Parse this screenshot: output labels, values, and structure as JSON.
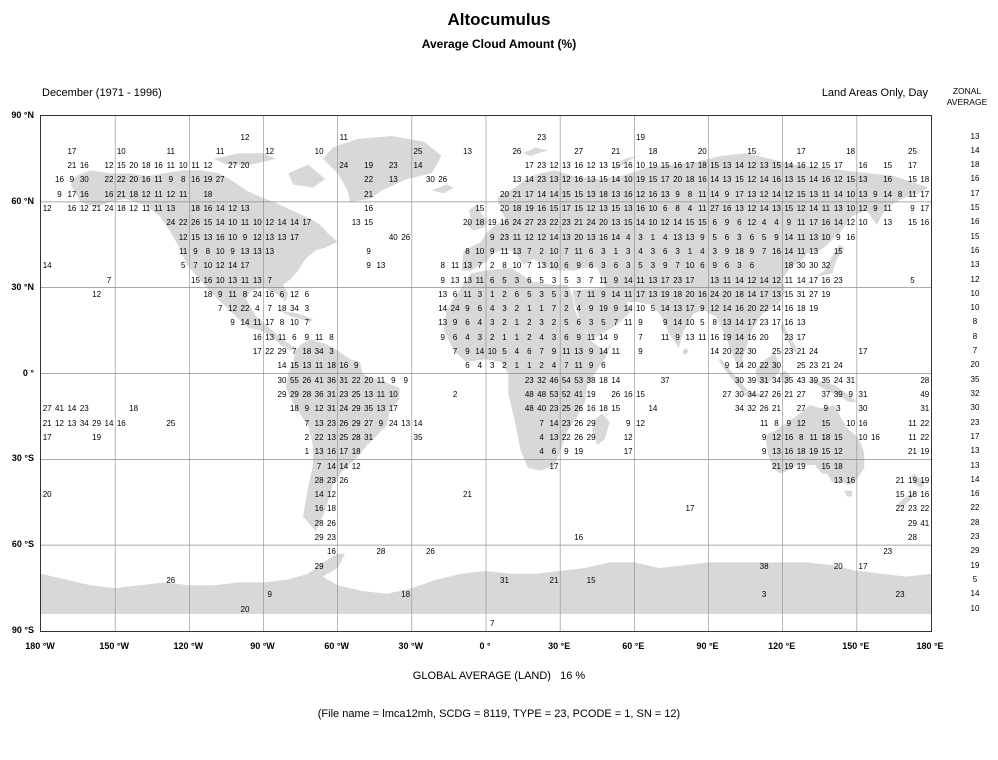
{
  "title": "Altocumulus",
  "subtitle": "Average Cloud Amount (%)",
  "period_label": "December (1971 - 1996)",
  "area_label": "Land Areas Only, Day",
  "zonal_header": [
    "ZONAL",
    "AVERAGE"
  ],
  "footer": {
    "global_average_label": "GLOBAL AVERAGE (LAND)   16 %",
    "file_info": "(File name = lmca12mh, SCDG = 8119, TYPE = 23, PCODE = 1, SN = 12)"
  },
  "chart_data": {
    "type": "heatmap",
    "title": "Altocumulus Average Cloud Amount (%)",
    "subtitle": "December (1971 - 1996), Land Areas Only, Day",
    "units": "percent",
    "global_average_percent": 16,
    "x_tick_labels": [
      "180 °W",
      "150 °W",
      "120 °W",
      "90 °W",
      "60 °W",
      "30 °W",
      "0 °",
      "30 °E",
      "60 °E",
      "90 °E",
      "120 °E",
      "150 °E",
      "180 °E"
    ],
    "y_tick_labels": [
      "90 °N",
      "60 °N",
      "30 °N",
      "0 °",
      "30 °S",
      "60 °S",
      "90 °S"
    ],
    "lon_range": [
      -180,
      180
    ],
    "lat_range": [
      -90,
      90
    ],
    "zonal_averages": [
      null,
      13,
      14,
      18,
      16,
      17,
      15,
      16,
      15,
      16,
      13,
      12,
      10,
      10,
      8,
      8,
      7,
      20,
      35,
      32,
      30,
      23,
      17,
      13,
      13,
      14,
      16,
      22,
      28,
      23,
      29,
      19,
      5,
      14,
      10,
      null
    ],
    "grid": {
      "n_cols": 72,
      "n_rows": 36,
      "lon_start": -180,
      "lon_step": 5,
      "lat_start": 90,
      "lat_step": -5,
      "rows": [
        {},
        {
          "16": 12,
          "24": 11,
          "40": 23,
          "48": 19
        },
        {
          "2": 17,
          "6": 10,
          "10": 11,
          "14": 11,
          "18": 12,
          "22": 10,
          "30": 25,
          "34": 13,
          "38": 26,
          "43": 27,
          "46": 21,
          "49": 18,
          "53": 20,
          "57": 15,
          "61": 17,
          "65": 18,
          "70": 25
        },
        {
          "2": 21,
          "3": 16,
          "5": 12,
          "6": 15,
          "7": 20,
          "8": 18,
          "9": 16,
          "10": 11,
          "11": 10,
          "12": 11,
          "13": 12,
          "15": 27,
          "16": 20,
          "24": 24,
          "26": 19,
          "28": 23,
          "30": 14,
          "39": 17,
          "40": 23,
          "41": 12,
          "42": 13,
          "43": 16,
          "44": 12,
          "45": 13,
          "46": 15,
          "47": 16,
          "48": 10,
          "49": 19,
          "50": 15,
          "51": 16,
          "52": 17,
          "53": 18,
          "54": 15,
          "55": 13,
          "56": 14,
          "57": 12,
          "58": 13,
          "59": 15,
          "60": 14,
          "61": 16,
          "62": 12,
          "63": 15,
          "64": 17,
          "66": 16,
          "68": 15,
          "70": 17
        },
        {
          "1": 16,
          "2": 9,
          "3": 30,
          "5": 22,
          "6": 22,
          "7": 20,
          "8": 16,
          "9": 11,
          "10": 9,
          "11": 8,
          "12": 16,
          "13": 19,
          "14": 27,
          "26": 22,
          "28": 13,
          "31": 30,
          "32": 26,
          "38": 13,
          "39": 14,
          "40": 23,
          "41": 13,
          "42": 12,
          "43": 16,
          "44": 13,
          "45": 15,
          "46": 14,
          "47": 10,
          "48": 19,
          "49": 15,
          "50": 17,
          "51": 20,
          "52": 18,
          "53": 16,
          "54": 14,
          "55": 13,
          "56": 15,
          "57": 12,
          "58": 14,
          "59": 16,
          "60": 13,
          "61": 15,
          "62": 14,
          "63": 16,
          "64": 12,
          "65": 15,
          "66": 13,
          "68": 16,
          "70": 15,
          "71": 18
        },
        {
          "1": 9,
          "2": 17,
          "3": 16,
          "5": 16,
          "6": 21,
          "7": 18,
          "8": 12,
          "9": 11,
          "10": 12,
          "11": 11,
          "13": 18,
          "26": 21,
          "37": 20,
          "38": 21,
          "39": 17,
          "40": 14,
          "41": 14,
          "42": 15,
          "43": 15,
          "44": 13,
          "45": 18,
          "46": 13,
          "47": 16,
          "48": 12,
          "49": 16,
          "50": 13,
          "51": 9,
          "52": 8,
          "53": 11,
          "54": 14,
          "55": 9,
          "56": 17,
          "57": 13,
          "58": 12,
          "59": 14,
          "60": 12,
          "61": 15,
          "62": 13,
          "63": 11,
          "64": 14,
          "65": 10,
          "66": 13,
          "67": 9,
          "68": 14,
          "69": 8,
          "70": 11,
          "71": 17
        },
        {
          "0": 12,
          "2": 16,
          "3": 12,
          "4": 21,
          "5": 24,
          "6": 18,
          "7": 12,
          "8": 11,
          "9": 11,
          "10": 13,
          "12": 18,
          "13": 16,
          "14": 14,
          "15": 12,
          "16": 13,
          "26": 16,
          "35": 15,
          "37": 20,
          "38": 18,
          "39": 19,
          "40": 16,
          "41": 15,
          "42": 17,
          "43": 15,
          "44": 12,
          "45": 13,
          "46": 15,
          "47": 13,
          "48": 16,
          "49": 10,
          "50": 6,
          "51": 8,
          "52": 4,
          "53": 11,
          "54": 27,
          "55": 16,
          "56": 13,
          "57": 12,
          "58": 14,
          "59": 13,
          "60": 15,
          "61": 12,
          "62": 14,
          "63": 11,
          "64": 13,
          "65": 10,
          "66": 12,
          "67": 9,
          "68": 11,
          "70": 9,
          "71": 17
        },
        {
          "10": 24,
          "11": 22,
          "12": 26,
          "13": 15,
          "14": 14,
          "15": 10,
          "16": 11,
          "17": 10,
          "18": 12,
          "19": 14,
          "20": 14,
          "21": 17,
          "25": 13,
          "26": 15,
          "34": 20,
          "35": 18,
          "36": 19,
          "37": 16,
          "38": 24,
          "39": 27,
          "40": 23,
          "41": 22,
          "42": 23,
          "43": 21,
          "44": 24,
          "45": 20,
          "46": 13,
          "47": 15,
          "48": 14,
          "49": 10,
          "50": 12,
          "51": 14,
          "52": 15,
          "53": 15,
          "54": 6,
          "55": 9,
          "56": 6,
          "57": 12,
          "58": 4,
          "59": 4,
          "60": 9,
          "61": 11,
          "62": 17,
          "63": 16,
          "64": 14,
          "65": 12,
          "66": 10,
          "68": 13,
          "70": 15,
          "71": 16
        },
        {
          "11": 12,
          "12": 15,
          "13": 13,
          "14": 16,
          "15": 10,
          "16": 9,
          "17": 12,
          "18": 13,
          "19": 13,
          "20": 17,
          "28": 40,
          "29": 26,
          "36": 9,
          "37": 23,
          "38": 11,
          "39": 12,
          "40": 12,
          "41": 14,
          "42": 13,
          "43": 20,
          "44": 13,
          "45": 16,
          "46": 14,
          "47": 4,
          "48": 3,
          "49": 1,
          "50": 4,
          "51": 13,
          "52": 13,
          "53": 9,
          "54": 5,
          "55": 6,
          "56": 3,
          "57": 6,
          "58": 5,
          "59": 9,
          "60": 14,
          "61": 11,
          "62": 13,
          "63": 10,
          "64": 9,
          "65": 16
        },
        {
          "11": 11,
          "12": 9,
          "13": 8,
          "14": 10,
          "15": 9,
          "16": 13,
          "17": 13,
          "18": 13,
          "26": 9,
          "34": 8,
          "35": 10,
          "36": 9,
          "37": 11,
          "38": 13,
          "39": 7,
          "40": 2,
          "41": 10,
          "42": 7,
          "43": 11,
          "44": 6,
          "45": 3,
          "46": 1,
          "47": 3,
          "48": 4,
          "49": 3,
          "50": 6,
          "51": 3,
          "52": 1,
          "53": 4,
          "54": 3,
          "55": 9,
          "56": 18,
          "57": 9,
          "58": 7,
          "59": 16,
          "60": 14,
          "61": 11,
          "62": 13,
          "64": 15
        },
        {
          "0": 14,
          "11": 5,
          "12": 7,
          "13": 10,
          "14": 12,
          "15": 14,
          "16": 17,
          "26": 9,
          "27": 13,
          "32": 8,
          "33": 11,
          "34": 13,
          "35": 7,
          "36": 2,
          "37": 8,
          "38": 10,
          "39": 7,
          "40": 13,
          "41": 10,
          "42": 6,
          "43": 9,
          "44": 6,
          "45": 3,
          "46": 6,
          "47": 3,
          "48": 5,
          "49": 3,
          "50": 9,
          "51": 7,
          "52": 10,
          "53": 6,
          "54": 9,
          "55": 6,
          "56": 3,
          "57": 6,
          "60": 18,
          "61": 30,
          "62": 30,
          "63": 32
        },
        {
          "5": 7,
          "12": 15,
          "13": 16,
          "14": 10,
          "15": 13,
          "16": 11,
          "17": 13,
          "18": 7,
          "32": 9,
          "33": 13,
          "34": 13,
          "35": 11,
          "36": 6,
          "37": 5,
          "38": 3,
          "39": 6,
          "40": 5,
          "41": 3,
          "42": 5,
          "43": 3,
          "44": 7,
          "45": 11,
          "46": 9,
          "47": 14,
          "48": 11,
          "49": 13,
          "50": 17,
          "51": 23,
          "52": 17,
          "54": 13,
          "55": 11,
          "56": 14,
          "57": 12,
          "58": 14,
          "59": 12,
          "60": 11,
          "61": 14,
          "62": 17,
          "63": 16,
          "64": 23,
          "70": 5
        },
        {
          "4": 12,
          "13": 18,
          "14": 9,
          "15": 11,
          "16": 8,
          "17": 24,
          "18": 16,
          "19": 6,
          "20": 12,
          "21": 6,
          "32": 13,
          "33": 6,
          "34": 11,
          "35": 3,
          "36": 1,
          "37": 2,
          "38": 6,
          "39": 5,
          "40": 3,
          "41": 5,
          "42": 3,
          "43": 7,
          "44": 11,
          "45": 9,
          "46": 14,
          "47": 11,
          "48": 17,
          "49": 13,
          "50": 19,
          "51": 18,
          "52": 20,
          "53": 16,
          "54": 24,
          "55": 20,
          "56": 18,
          "57": 14,
          "58": 17,
          "59": 13,
          "60": 15,
          "61": 31,
          "62": 27,
          "63": 19
        },
        {
          "14": 7,
          "15": 12,
          "16": 22,
          "17": 4,
          "18": 7,
          "19": 18,
          "20": 34,
          "21": 3,
          "32": 14,
          "33": 24,
          "34": 9,
          "35": 6,
          "36": 4,
          "37": 3,
          "38": 2,
          "39": 1,
          "40": 1,
          "41": 7,
          "42": 2,
          "43": 4,
          "44": 9,
          "45": 19,
          "46": 9,
          "47": 14,
          "48": 10,
          "49": 5,
          "50": 14,
          "51": 13,
          "52": 17,
          "53": 9,
          "54": 12,
          "55": 14,
          "56": 16,
          "57": 20,
          "58": 22,
          "59": 14,
          "60": 16,
          "61": 18,
          "62": 19
        },
        {
          "15": 9,
          "16": 14,
          "17": 11,
          "18": 17,
          "19": 8,
          "20": 10,
          "21": 7,
          "32": 13,
          "33": 9,
          "34": 6,
          "35": 4,
          "36": 3,
          "37": 2,
          "38": 1,
          "39": 2,
          "40": 3,
          "41": 2,
          "42": 5,
          "43": 6,
          "44": 3,
          "45": 5,
          "46": 7,
          "47": 11,
          "48": 9,
          "50": 9,
          "51": 14,
          "52": 10,
          "53": 5,
          "54": 8,
          "55": 13,
          "56": 14,
          "57": 17,
          "58": 23,
          "59": 17,
          "60": 16,
          "61": 13
        },
        {
          "17": 16,
          "18": 13,
          "19": 11,
          "20": 6,
          "21": 9,
          "22": 11,
          "23": 8,
          "32": 9,
          "33": 6,
          "34": 4,
          "35": 3,
          "36": 2,
          "37": 1,
          "38": 1,
          "39": 2,
          "40": 4,
          "41": 3,
          "42": 6,
          "43": 9,
          "44": 11,
          "45": 14,
          "46": 9,
          "48": 7,
          "50": 11,
          "51": 9,
          "52": 13,
          "53": 11,
          "54": 16,
          "55": 19,
          "56": 14,
          "57": 16,
          "58": 20,
          "60": 23,
          "61": 17
        },
        {
          "17": 17,
          "18": 22,
          "19": 29,
          "20": 7,
          "21": 18,
          "22": 34,
          "23": 3,
          "33": 7,
          "34": 9,
          "35": 14,
          "36": 10,
          "37": 5,
          "38": 4,
          "39": 6,
          "40": 7,
          "41": 9,
          "42": 11,
          "43": 13,
          "44": 9,
          "45": 14,
          "46": 11,
          "48": 9,
          "54": 14,
          "55": 20,
          "56": 22,
          "57": 30,
          "59": 25,
          "60": 23,
          "61": 21,
          "62": 24,
          "66": 17
        },
        {
          "19": 14,
          "20": 15,
          "21": 13,
          "22": 11,
          "23": 18,
          "24": 16,
          "25": 9,
          "34": 6,
          "35": 4,
          "36": 3,
          "37": 2,
          "38": 1,
          "39": 1,
          "40": 2,
          "41": 4,
          "42": 7,
          "43": 11,
          "44": 9,
          "45": 6,
          "55": 9,
          "56": 14,
          "57": 20,
          "58": 22,
          "59": 30,
          "61": 25,
          "62": 23,
          "63": 21,
          "64": 24
        },
        {
          "19": 30,
          "20": 55,
          "21": 26,
          "22": 41,
          "23": 36,
          "24": 31,
          "25": 22,
          "26": 20,
          "27": 11,
          "28": 9,
          "29": 9,
          "39": 23,
          "40": 32,
          "41": 46,
          "42": 54,
          "43": 53,
          "44": 38,
          "45": 18,
          "46": 14,
          "50": 37,
          "56": 30,
          "57": 39,
          "58": 31,
          "59": 34,
          "60": 35,
          "61": 43,
          "62": 39,
          "63": 35,
          "64": 24,
          "65": 31,
          "71": 28
        },
        {
          "19": 29,
          "20": 29,
          "21": 28,
          "22": 36,
          "23": 31,
          "24": 23,
          "25": 25,
          "26": 13,
          "27": 11,
          "28": 10,
          "33": 2,
          "39": 48,
          "40": 48,
          "41": 53,
          "42": 52,
          "43": 41,
          "44": 19,
          "46": 26,
          "47": 16,
          "48": 15,
          "55": 27,
          "56": 30,
          "57": 34,
          "58": 27,
          "59": 26,
          "60": 21,
          "61": 27,
          "63": 37,
          "64": 39,
          "65": 9,
          "66": 31,
          "71": 49
        },
        {
          "0": 27,
          "1": 41,
          "2": 14,
          "3": 23,
          "7": 18,
          "20": 18,
          "21": 9,
          "22": 12,
          "23": 31,
          "24": 24,
          "25": 29,
          "26": 35,
          "27": 13,
          "28": 17,
          "39": 48,
          "40": 40,
          "41": 23,
          "42": 25,
          "43": 26,
          "44": 16,
          "45": 18,
          "46": 15,
          "49": 14,
          "56": 34,
          "57": 32,
          "58": 26,
          "59": 21,
          "61": 27,
          "63": 9,
          "64": 3,
          "66": 30,
          "71": 31
        },
        {
          "0": 21,
          "1": 12,
          "2": 13,
          "3": 34,
          "4": 29,
          "5": 14,
          "6": 16,
          "10": 25,
          "21": 7,
          "22": 13,
          "23": 23,
          "24": 26,
          "25": 29,
          "26": 27,
          "27": 9,
          "28": 24,
          "29": 13,
          "30": 14,
          "40": 7,
          "41": 14,
          "42": 23,
          "43": 26,
          "44": 29,
          "47": 9,
          "48": 12,
          "58": 11,
          "59": 8,
          "60": 9,
          "61": 12,
          "63": 15,
          "65": 10,
          "66": 16,
          "70": 11,
          "71": 22
        },
        {
          "0": 17,
          "4": 19,
          "21": 2,
          "22": 22,
          "23": 13,
          "24": 25,
          "25": 28,
          "26": 31,
          "30": 35,
          "40": 4,
          "41": 13,
          "42": 22,
          "43": 26,
          "44": 29,
          "47": 12,
          "58": 9,
          "59": 12,
          "60": 16,
          "61": 8,
          "62": 11,
          "63": 18,
          "64": 15,
          "66": 10,
          "67": 16,
          "70": 11,
          "71": 22
        },
        {
          "21": 1,
          "22": 13,
          "23": 16,
          "24": 17,
          "25": 18,
          "40": 4,
          "41": 6,
          "42": 9,
          "43": 19,
          "47": 17,
          "58": 9,
          "59": 13,
          "60": 16,
          "61": 18,
          "62": 19,
          "63": 15,
          "64": 12,
          "70": 21,
          "71": 19
        },
        {
          "22": 7,
          "23": 14,
          "24": 14,
          "25": 12,
          "41": 17,
          "59": 21,
          "60": 19,
          "61": 19,
          "63": 15,
          "64": 18
        },
        {
          "22": 28,
          "23": 23,
          "24": 26,
          "64": 13,
          "65": 16,
          "69": 21,
          "70": 19,
          "71": 19
        },
        {
          "0": 20,
          "22": 14,
          "23": 12,
          "34": 21,
          "69": 15,
          "70": 18,
          "71": 16
        },
        {
          "22": 16,
          "23": 18,
          "52": 17,
          "69": 22,
          "70": 23,
          "71": 22
        },
        {
          "22": 28,
          "23": 26,
          "70": 29,
          "71": 41
        },
        {
          "22": 29,
          "23": 23,
          "43": 16,
          "70": 28
        },
        {
          "23": 16,
          "27": 28,
          "31": 26,
          "68": 23
        },
        {
          "22": 29,
          "58": 38,
          "64": 20,
          "66": 17
        },
        {
          "10": 26,
          "37": 31,
          "41": 21,
          "44": 15
        },
        {
          "18": 9,
          "29": 18,
          "58": 3,
          "69": 23
        },
        {
          "16": 20
        },
        {
          "36": 7
        }
      ]
    }
  }
}
